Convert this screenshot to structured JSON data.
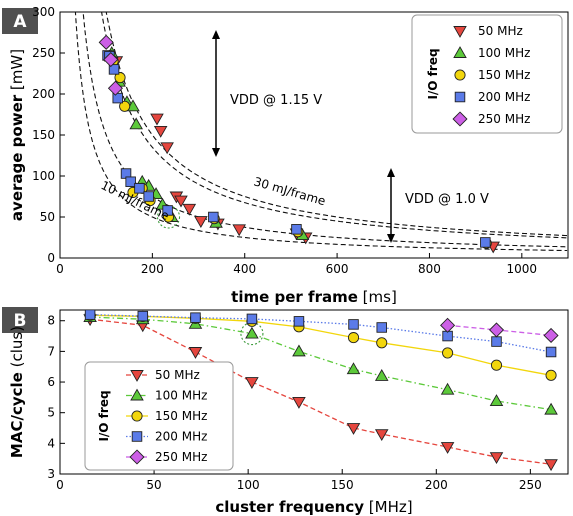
{
  "colors": {
    "50MHz": "#e5463e",
    "100MHz": "#5cc93a",
    "150MHz": "#f2d60c",
    "200MHz": "#5b7be8",
    "250MHz": "#cc5fe6",
    "badge": "#505050",
    "highlight": "#3c9a3c"
  },
  "chart_data": [
    {
      "panel": "A",
      "type": "scatter",
      "xlabel_bold": "time per frame",
      "xlabel_unit": "[ms]",
      "ylabel_bold": "average power",
      "ylabel_unit": "[mW]",
      "xlim": [
        0,
        1100
      ],
      "ylim": [
        0,
        300
      ],
      "xticks": [
        0,
        200,
        400,
        600,
        800,
        1000
      ],
      "yticks": [
        0,
        50,
        100,
        150,
        200,
        250,
        300
      ],
      "grid": false,
      "legend": {
        "title": "I/O freq",
        "position": "top-right",
        "entries": [
          "50 MHz",
          "100 MHz",
          "150 MHz",
          "200 MHz",
          "250 MHz"
        ]
      },
      "series": [
        {
          "name": "50 MHz",
          "marker": "triangle-down",
          "color_key": "50MHz",
          "x": [
            122,
            210,
            218,
            232,
            252,
            262,
            280,
            305,
            342,
            388,
            512,
            532,
            938
          ],
          "y": [
            240,
            170,
            155,
            135,
            75,
            70,
            60,
            45,
            42,
            35,
            30,
            25,
            14
          ]
        },
        {
          "name": "100 MHz",
          "marker": "triangle-up",
          "color_key": "100MHz",
          "x": [
            112,
            128,
            145,
            158,
            165,
            178,
            192,
            208,
            222,
            242,
            338,
            525
          ],
          "y": [
            250,
            215,
            190,
            185,
            163,
            93,
            88,
            78,
            65,
            50,
            43,
            28
          ]
        },
        {
          "name": "150 MHz",
          "marker": "circle",
          "color_key": "150MHz",
          "x": [
            115,
            130,
            140,
            158,
            178,
            195,
            235,
            334,
            515,
            923
          ],
          "y": [
            240,
            220,
            185,
            80,
            85,
            70,
            50,
            48,
            32,
            18
          ]
        },
        {
          "name": "200 MHz",
          "marker": "square",
          "color_key": "200MHz",
          "x": [
            103,
            107,
            117,
            125,
            143,
            153,
            172,
            192,
            233,
            332,
            512,
            921
          ],
          "y": [
            247,
            246,
            230,
            195,
            103,
            93,
            85,
            75,
            58,
            50,
            35,
            19
          ]
        },
        {
          "name": "250 MHz",
          "marker": "diamond",
          "color_key": "250MHz",
          "x": [
            100,
            110,
            120
          ],
          "y": [
            263,
            242,
            207
          ]
        }
      ],
      "curves": [
        {
          "label": "10 mJ/frame",
          "energy_mJ": 10
        },
        {
          "energy_mJ": 15
        },
        {
          "label": "30 mJ/frame",
          "energy_mJ": 30
        },
        {
          "energy_mJ": 27
        }
      ],
      "annotations": [
        {
          "text": "VDD @ 1.15 V"
        },
        {
          "text": "VDD @ 1.0 V"
        }
      ],
      "highlight": {
        "x": 235,
        "y": 50
      }
    },
    {
      "panel": "B",
      "type": "line",
      "xlabel_bold": "cluster frequency",
      "xlabel_unit": "[MHz]",
      "ylabel_bold": "MAC/cycle",
      "ylabel_unit": "(clus)",
      "xlim": [
        0,
        270
      ],
      "ylim": [
        3,
        8.35
      ],
      "xticks": [
        0,
        50,
        100,
        150,
        200,
        250
      ],
      "yticks": [
        3,
        4,
        5,
        6,
        7,
        8
      ],
      "grid": false,
      "legend": {
        "title": "I/O freq",
        "position": "bottom-left",
        "entries": [
          "50 MHz",
          "100 MHz",
          "150 MHz",
          "200 MHz",
          "250 MHz"
        ]
      },
      "series": [
        {
          "name": "50 MHz",
          "marker": "triangle-down",
          "color_key": "50MHz",
          "line": "dashed",
          "x": [
            16,
            44,
            72,
            102,
            127,
            156,
            171,
            206,
            232,
            261
          ],
          "y": [
            8.05,
            7.85,
            6.98,
            6.0,
            5.35,
            4.5,
            4.3,
            3.88,
            3.55,
            3.32
          ]
        },
        {
          "name": "100 MHz",
          "marker": "triangle-up",
          "color_key": "100MHz",
          "line": "dashdot",
          "x": [
            16,
            44,
            72,
            102,
            127,
            156,
            171,
            206,
            232,
            261
          ],
          "y": [
            8.12,
            8.05,
            7.9,
            7.58,
            7.0,
            6.42,
            6.2,
            5.75,
            5.38,
            5.1
          ]
        },
        {
          "name": "150 MHz",
          "marker": "circle",
          "color_key": "150MHz",
          "line": "solid",
          "x": [
            16,
            44,
            72,
            102,
            127,
            156,
            171,
            206,
            232,
            261
          ],
          "y": [
            8.18,
            8.14,
            8.08,
            7.98,
            7.8,
            7.45,
            7.28,
            6.95,
            6.55,
            6.22
          ]
        },
        {
          "name": "200 MHz",
          "marker": "square",
          "color_key": "200MHz",
          "line": "dotted",
          "x": [
            16,
            44,
            72,
            102,
            127,
            156,
            171,
            206,
            232,
            261
          ],
          "y": [
            8.2,
            8.15,
            8.1,
            8.06,
            7.98,
            7.88,
            7.78,
            7.5,
            7.32,
            6.98
          ]
        },
        {
          "name": "250 MHz",
          "marker": "diamond",
          "color_key": "250MHz",
          "line": "dashed",
          "x": [
            206,
            232,
            261
          ],
          "y": [
            7.85,
            7.7,
            7.52
          ]
        }
      ],
      "highlight": {
        "x": 102,
        "y": 7.58
      }
    }
  ]
}
